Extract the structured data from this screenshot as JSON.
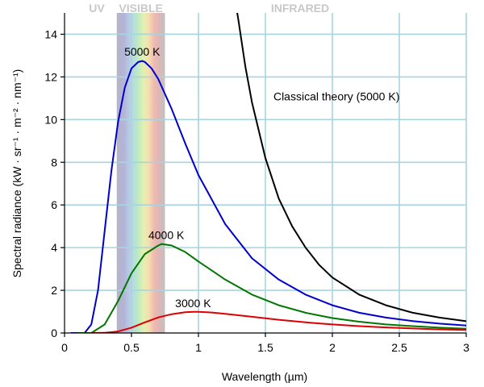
{
  "chart_data": {
    "type": "line",
    "title": "",
    "xlabel": "Wavelength (µm)",
    "ylabel": "Spectral radiance (kW · sr⁻¹ · m⁻² · nm⁻¹)",
    "xlim": [
      0,
      3
    ],
    "ylim": [
      0,
      15
    ],
    "xticks": [
      0,
      0.5,
      1,
      1.5,
      2,
      2.5,
      3
    ],
    "xtick_labels": [
      "0",
      "0.5",
      "1",
      "1.5",
      "2",
      "2.5",
      "3"
    ],
    "yticks": [
      0,
      2,
      4,
      6,
      8,
      10,
      12,
      14
    ],
    "ytick_labels": [
      "0",
      "2",
      "4",
      "6",
      "8",
      "10",
      "12",
      "14"
    ],
    "grid": true,
    "gridline_color": "#a8d4e0",
    "bands": [
      {
        "label": "UV",
        "range": [
          0,
          0.39
        ]
      },
      {
        "label": "VISIBLE",
        "range": [
          0.39,
          0.75
        ]
      },
      {
        "label": "INFRARED",
        "range": [
          0.75,
          3
        ]
      }
    ],
    "series": [
      {
        "name": "5000 K",
        "color": "#0000cc",
        "x": [
          0.05,
          0.1,
          0.15,
          0.2,
          0.25,
          0.3,
          0.35,
          0.4,
          0.45,
          0.5,
          0.55,
          0.58,
          0.6,
          0.65,
          0.7,
          0.8,
          0.9,
          1.0,
          1.2,
          1.4,
          1.6,
          1.8,
          2.0,
          2.2,
          2.4,
          2.6,
          2.8,
          3.0
        ],
        "y": [
          0.0,
          0.0,
          0.0,
          0.4,
          2.0,
          4.8,
          7.6,
          9.9,
          11.5,
          12.4,
          12.7,
          12.75,
          12.7,
          12.4,
          11.9,
          10.5,
          8.9,
          7.4,
          5.1,
          3.5,
          2.5,
          1.8,
          1.3,
          0.95,
          0.72,
          0.56,
          0.44,
          0.35
        ]
      },
      {
        "name": "4000 K",
        "color": "#007700",
        "x": [
          0.1,
          0.2,
          0.3,
          0.4,
          0.5,
          0.6,
          0.7,
          0.725,
          0.8,
          0.9,
          1.0,
          1.2,
          1.4,
          1.6,
          1.8,
          2.0,
          2.2,
          2.4,
          2.6,
          2.8,
          3.0
        ],
        "y": [
          0.0,
          0.0,
          0.4,
          1.5,
          2.8,
          3.7,
          4.1,
          4.17,
          4.1,
          3.8,
          3.35,
          2.5,
          1.8,
          1.3,
          0.95,
          0.7,
          0.53,
          0.4,
          0.32,
          0.25,
          0.2
        ]
      },
      {
        "name": "3000 K",
        "color": "#dd0000",
        "x": [
          0.2,
          0.3,
          0.4,
          0.5,
          0.6,
          0.7,
          0.8,
          0.9,
          0.966,
          1.0,
          1.1,
          1.2,
          1.4,
          1.6,
          1.8,
          2.0,
          2.2,
          2.4,
          2.6,
          2.8,
          3.0
        ],
        "y": [
          0.0,
          0.01,
          0.07,
          0.25,
          0.5,
          0.73,
          0.88,
          0.97,
          0.99,
          0.99,
          0.96,
          0.9,
          0.76,
          0.62,
          0.5,
          0.4,
          0.32,
          0.26,
          0.21,
          0.17,
          0.14
        ]
      },
      {
        "name": "Classical theory (5000 K)",
        "color": "#000000",
        "x": [
          1.29,
          1.3,
          1.35,
          1.4,
          1.5,
          1.6,
          1.7,
          1.8,
          1.9,
          2.0,
          2.2,
          2.4,
          2.6,
          2.8,
          3.0
        ],
        "y": [
          15.0,
          14.6,
          12.5,
          10.8,
          8.2,
          6.3,
          5.0,
          4.0,
          3.2,
          2.6,
          1.8,
          1.3,
          0.95,
          0.72,
          0.55
        ]
      }
    ],
    "annotations": [
      {
        "text": "5000 K",
        "x": 0.58,
        "y": 13.0
      },
      {
        "text": "4000 K",
        "x": 0.76,
        "y": 4.4
      },
      {
        "text": "3000 K",
        "x": 0.96,
        "y": 1.2
      },
      {
        "text": "Classical theory (5000 K)",
        "x": 1.56,
        "y": 10.9
      }
    ]
  }
}
